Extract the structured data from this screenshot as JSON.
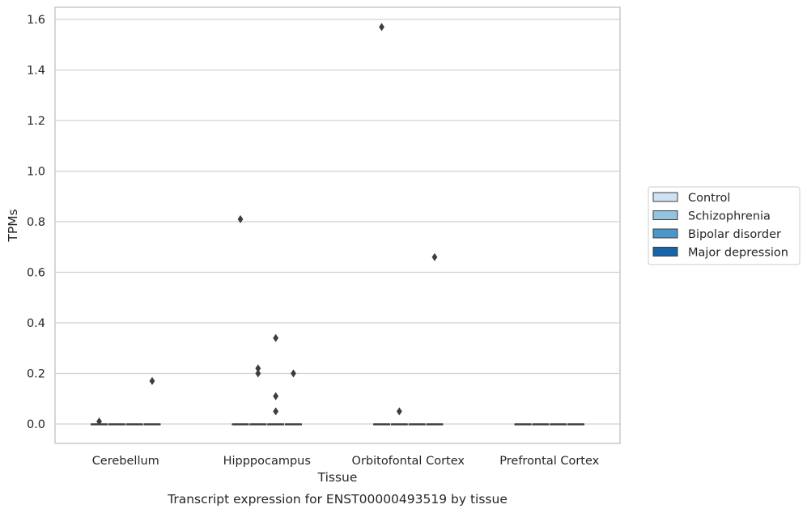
{
  "chart_data": {
    "type": "box",
    "title": "Transcript expression for ENST00000493519 by tissue",
    "xlabel": "Tissue",
    "ylabel": "TPMs",
    "ylim": [
      -0.075,
      1.65
    ],
    "yticks": [
      "0.0",
      "0.2",
      "0.4",
      "0.6",
      "0.8",
      "1.0",
      "1.2",
      "1.4",
      "1.6"
    ],
    "categories": [
      "Cerebellum",
      "Hipppocampus",
      "Orbitofontal Cortex",
      "Prefrontal Cortex"
    ],
    "grid": true,
    "legend_position": "right",
    "series": [
      {
        "name": "Control",
        "color": "#d0e1f2",
        "boxes": [
          {
            "median": 0,
            "q1": 0,
            "q3": 0
          },
          {
            "median": 0,
            "q1": 0,
            "q3": 0
          },
          {
            "median": 0,
            "q1": 0,
            "q3": 0
          },
          {
            "median": 0,
            "q1": 0,
            "q3": 0
          }
        ],
        "outliers": [
          [
            0.01
          ],
          [
            0.81
          ],
          [
            1.57
          ],
          []
        ]
      },
      {
        "name": "Schizophrenia",
        "color": "#94c4df",
        "boxes": [
          {
            "median": 0,
            "q1": 0,
            "q3": 0
          },
          {
            "median": 0,
            "q1": 0,
            "q3": 0
          },
          {
            "median": 0,
            "q1": 0,
            "q3": 0
          },
          {
            "median": 0,
            "q1": 0,
            "q3": 0
          }
        ],
        "outliers": [
          [],
          [
            0.22,
            0.2
          ],
          [
            0.05
          ],
          []
        ]
      },
      {
        "name": "Bipolar disorder",
        "color": "#4a98c9",
        "boxes": [
          {
            "median": 0,
            "q1": 0,
            "q3": 0
          },
          {
            "median": 0,
            "q1": 0,
            "q3": 0
          },
          {
            "median": 0,
            "q1": 0,
            "q3": 0
          },
          {
            "median": 0,
            "q1": 0,
            "q3": 0
          }
        ],
        "outliers": [
          [],
          [
            0.34,
            0.11,
            0.05
          ],
          [],
          []
        ]
      },
      {
        "name": "Major depression",
        "color": "#1764ab",
        "boxes": [
          {
            "median": 0,
            "q1": 0,
            "q3": 0
          },
          {
            "median": 0,
            "q1": 0,
            "q3": 0
          },
          {
            "median": 0,
            "q1": 0,
            "q3": 0
          },
          {
            "median": 0,
            "q1": 0,
            "q3": 0
          }
        ],
        "outliers": [
          [
            0.17
          ],
          [
            0.2
          ],
          [
            0.66
          ],
          []
        ]
      }
    ]
  }
}
